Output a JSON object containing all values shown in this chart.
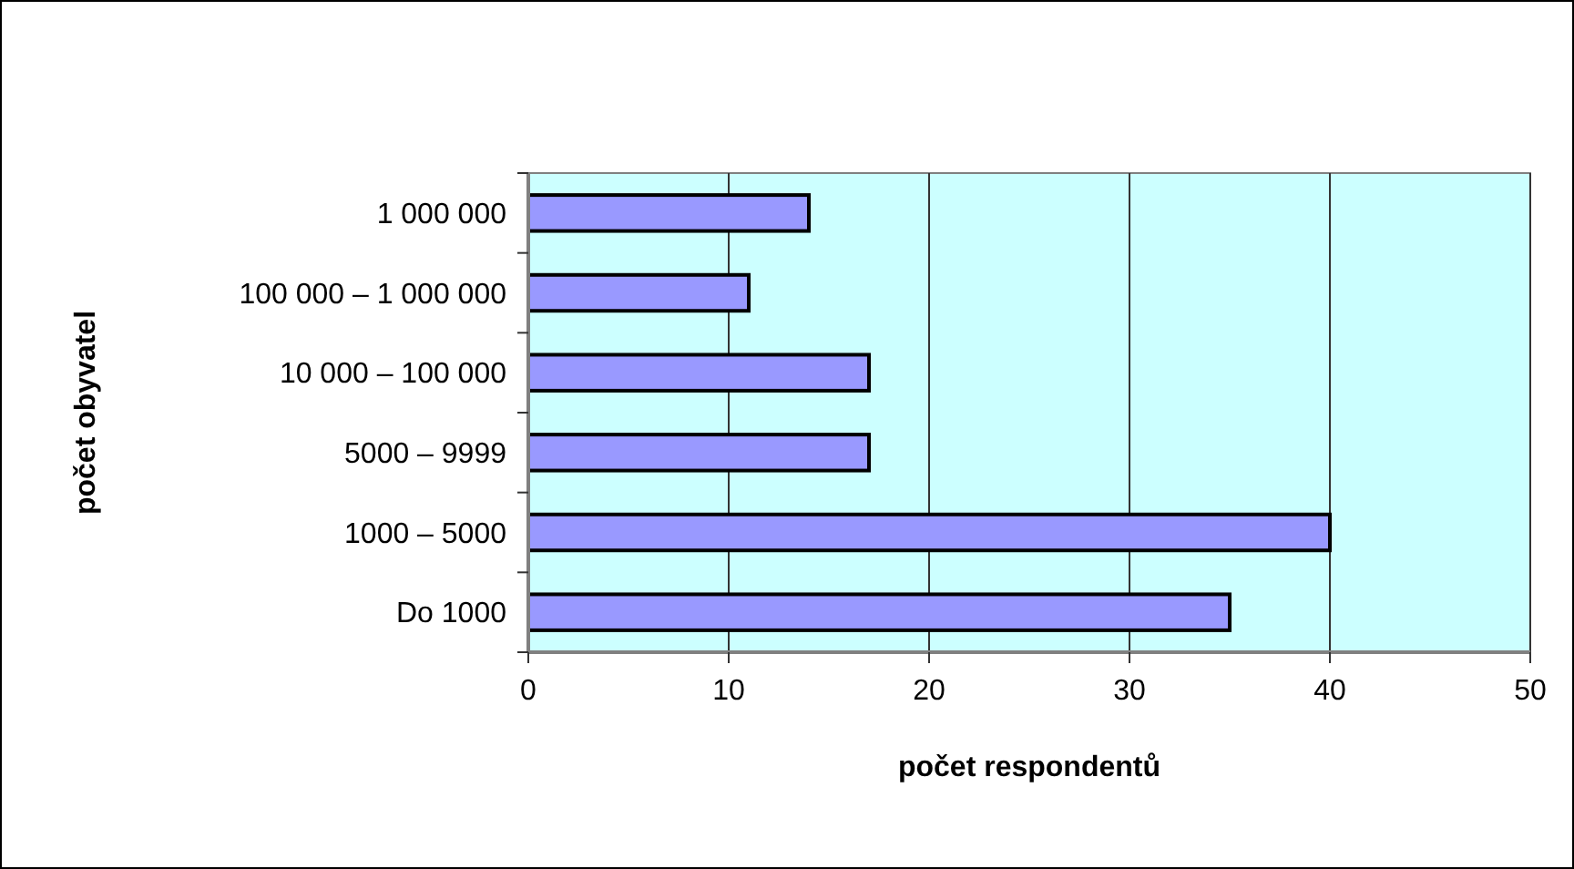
{
  "chart_data": {
    "type": "bar",
    "orientation": "horizontal",
    "xlabel": "počet respondentů",
    "ylabel": "počet obyvatel",
    "categories": [
      "1 000 000",
      "100 000 – 1 000 000",
      "10 000 – 100 000",
      "5000 – 9999",
      "1000 – 5000",
      "Do 1000"
    ],
    "values": [
      14,
      11,
      17,
      17,
      40,
      35
    ],
    "color": "#9999ff",
    "xlim": [
      0,
      50
    ],
    "xticks": [
      0,
      10,
      20,
      30,
      40,
      50
    ],
    "grid": "x"
  }
}
